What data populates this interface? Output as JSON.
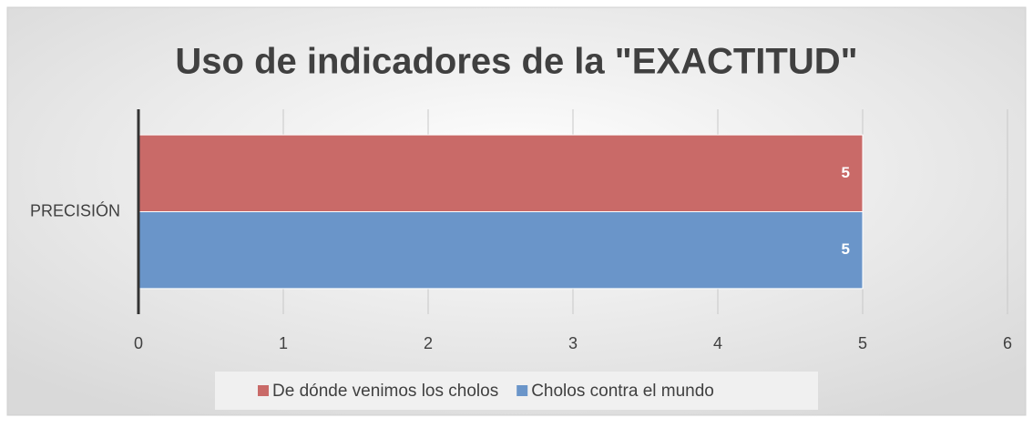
{
  "chart_data": {
    "type": "hbar",
    "title": "Uso de indicadores de la \"EXACTITUD\"",
    "categories": [
      "PRECISIÓN"
    ],
    "series": [
      {
        "name": "De dónde venimos los cholos",
        "color": "#c96a68",
        "values": [
          5
        ]
      },
      {
        "name": "Cholos contra el mundo",
        "color": "#6a95c9",
        "values": [
          5
        ]
      }
    ],
    "xlim": [
      0,
      6
    ],
    "xticks": [
      0,
      1,
      2,
      3,
      4,
      5,
      6
    ],
    "grid": true,
    "legend": "bottom"
  }
}
